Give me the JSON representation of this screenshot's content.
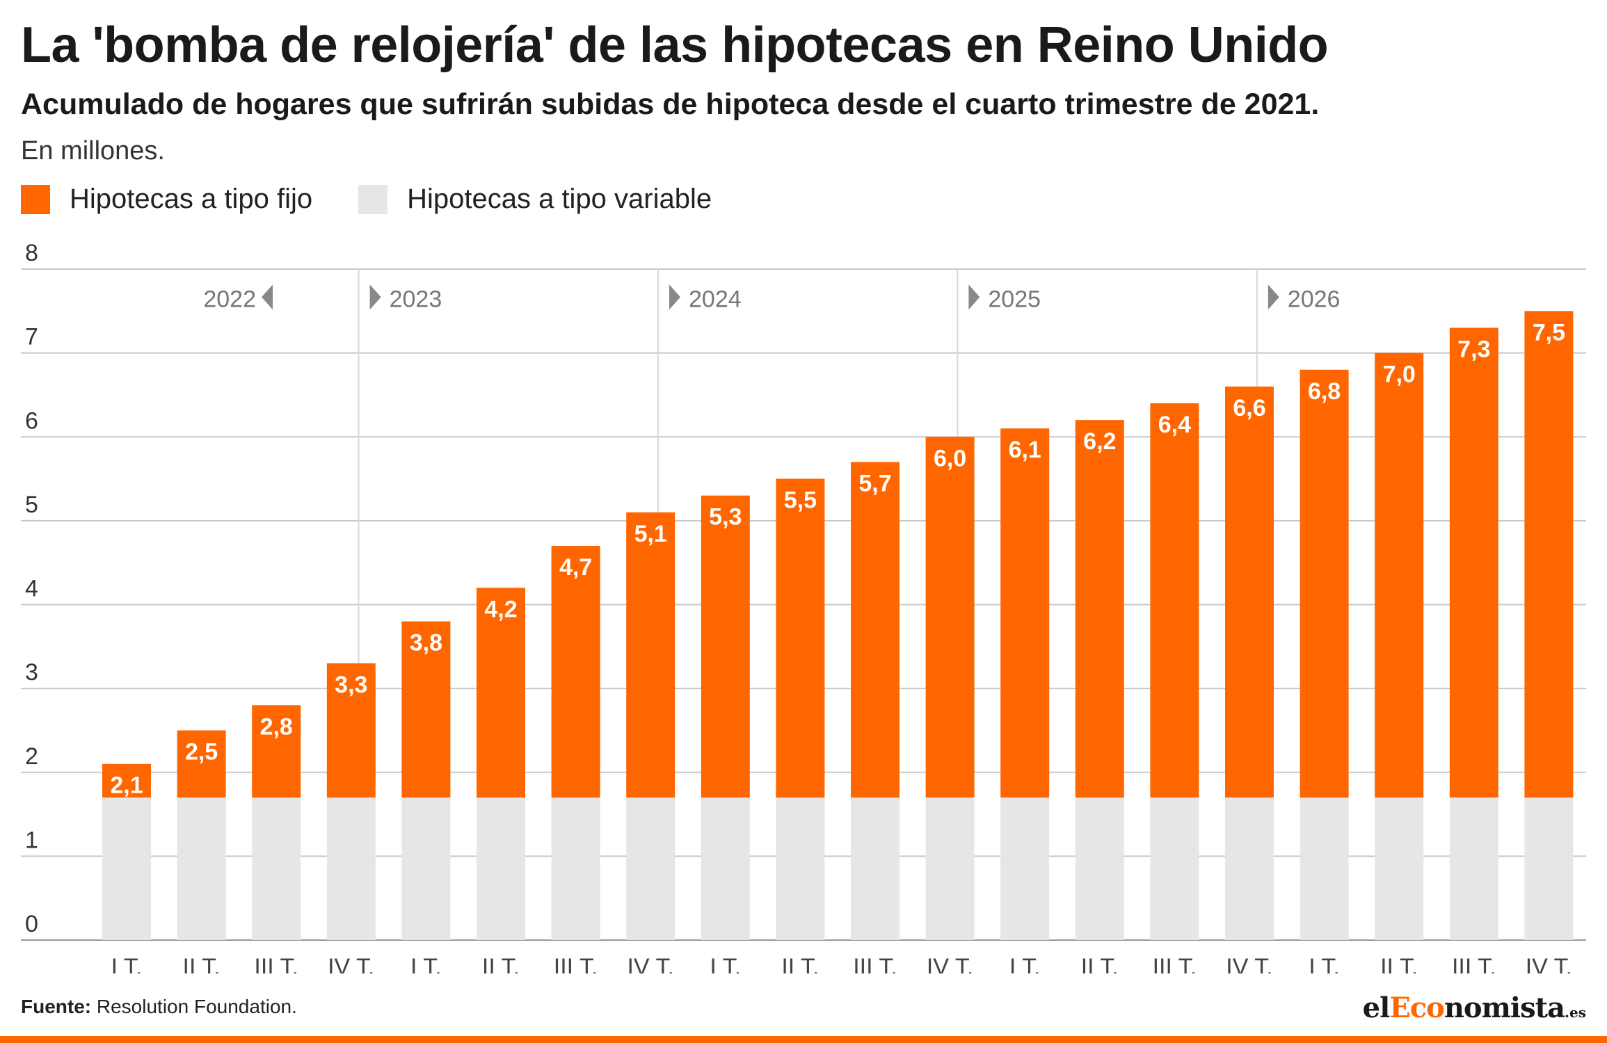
{
  "title": "La 'bomba de relojería' de las hipotecas en Reino Unido",
  "subtitle": "Acumulado de hogares que sufrirán subidas de hipoteca desde el cuarto trimestre de 2021.",
  "unit_note": "En millones.",
  "source": {
    "label": "Fuente:",
    "text": "Resolution Foundation."
  },
  "logo": {
    "part1": "el",
    "part2": "Eco",
    "part3": "nomista",
    "tld": ".es"
  },
  "colors": {
    "fixed": "#ff6600",
    "variable": "#e6e6e6",
    "grid": "#c8c8c8",
    "year_divider": "#d9d9d9",
    "year_label": "#777777",
    "marker": "#888888",
    "bottom_bar": "#ff6600"
  },
  "chart_data": {
    "type": "bar",
    "stacked": true,
    "title": "",
    "xlabel": "",
    "ylabel": "",
    "ylim": [
      0,
      8
    ],
    "yticks": [
      0,
      1,
      2,
      3,
      4,
      5,
      6,
      7,
      8
    ],
    "grid": true,
    "legend_position": "top-left",
    "categories": [
      "I T.",
      "II T.",
      "III T.",
      "IV T.",
      "I T.",
      "II T.",
      "III T.",
      "IV T.",
      "I T.",
      "II T.",
      "III T.",
      "IV T.",
      "I T.",
      "II T.",
      "III T.",
      "IV T.",
      "I T.",
      "II T.",
      "III T.",
      "IV T."
    ],
    "year_groups": [
      {
        "label": "2022",
        "start": 0,
        "end": 3,
        "marker": "left"
      },
      {
        "label": "2023",
        "start": 4,
        "end": 7,
        "marker": "right"
      },
      {
        "label": "2024",
        "start": 8,
        "end": 11,
        "marker": "right"
      },
      {
        "label": "2025",
        "start": 12,
        "end": 15,
        "marker": "right"
      },
      {
        "label": "2026",
        "start": 16,
        "end": 19,
        "marker": "right"
      }
    ],
    "totals": [
      2.1,
      2.5,
      2.8,
      3.3,
      3.8,
      4.2,
      4.7,
      5.1,
      5.3,
      5.5,
      5.7,
      6.0,
      6.1,
      6.2,
      6.4,
      6.6,
      6.8,
      7.0,
      7.3,
      7.5
    ],
    "total_labels": [
      "2,1",
      "2,5",
      "2,8",
      "3,3",
      "3,8",
      "4,2",
      "4,7",
      "5,1",
      "5,3",
      "5,5",
      "5,7",
      "6,0",
      "6,1",
      "6,2",
      "6,4",
      "6,6",
      "6,8",
      "7,0",
      "7,3",
      "7,5"
    ],
    "series": [
      {
        "name": "Hipotecas a tipo variable",
        "key": "variable",
        "values": [
          1.7,
          1.7,
          1.7,
          1.7,
          1.7,
          1.7,
          1.7,
          1.7,
          1.7,
          1.7,
          1.7,
          1.7,
          1.7,
          1.7,
          1.7,
          1.7,
          1.7,
          1.7,
          1.7,
          1.7
        ]
      },
      {
        "name": "Hipotecas a tipo fijo",
        "key": "fixed",
        "values": [
          0.4,
          0.8,
          1.1,
          1.6,
          2.1,
          2.5,
          3.0,
          3.4,
          3.6,
          3.8,
          4.0,
          4.3,
          4.4,
          4.5,
          4.7,
          4.9,
          5.1,
          5.3,
          5.6,
          5.8
        ]
      }
    ],
    "legend": [
      "Hipotecas a tipo fijo",
      "Hipotecas a tipo variable"
    ]
  }
}
